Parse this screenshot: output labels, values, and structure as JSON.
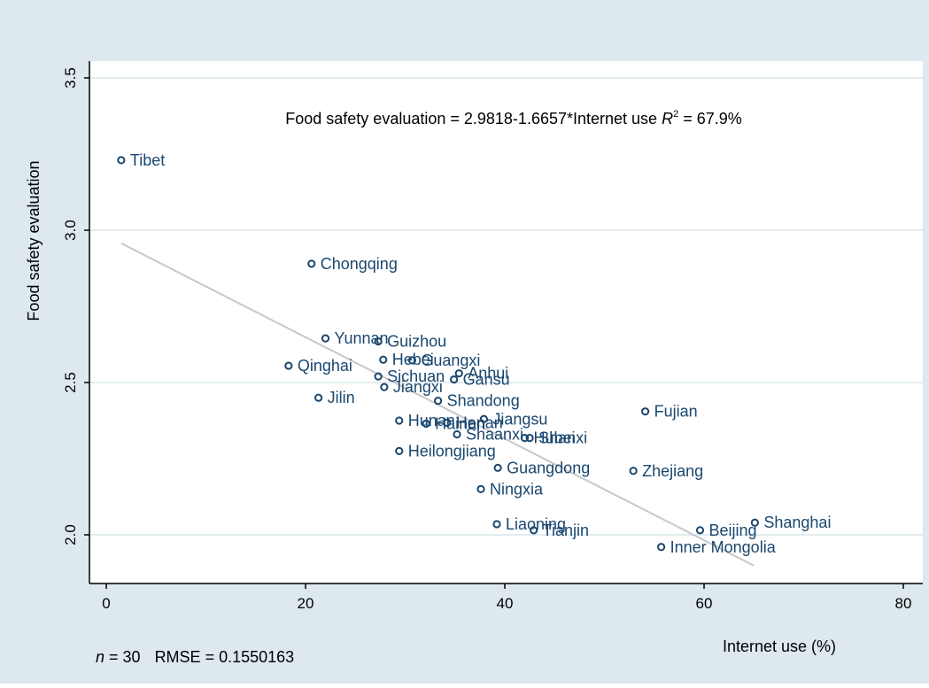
{
  "chart_data": {
    "type": "scatter",
    "ylabel": "Food safety evaluation",
    "xlabel": "Internet use (%)",
    "xlim": [
      0,
      80
    ],
    "ylim": [
      1.85,
      3.6
    ],
    "x_ticks": [
      0,
      20,
      40,
      60,
      80
    ],
    "y_ticks": [
      2.0,
      2.5,
      3.0,
      3.5
    ],
    "x_tick_labels": [
      "0",
      "20",
      "40",
      "60",
      "80"
    ],
    "y_tick_labels": [
      "2.0",
      "2.5",
      "3.0",
      "3.5"
    ],
    "grid": true,
    "fit_line": {
      "x": [
        1.5,
        65
      ],
      "y": [
        2.957,
        1.899
      ]
    },
    "annotation": {
      "prefix": "Food safety evaluation = 2.9818-1.6657*Internet use ",
      "r": "R",
      "sup": "2",
      "suffix": " = 67.9%"
    },
    "footnote": {
      "n_symbol": "n",
      "n_value": " = 30",
      "rmse": "RMSE =  0.1550163"
    },
    "colors": {
      "outer_background": "#dde9ef",
      "plot_background": "#ffffff",
      "grid": "#e3ecf1",
      "marker": "#1a476f",
      "label": "#1a476f",
      "fit_line": "#c8c8c8",
      "axis": "#000000"
    },
    "points": [
      {
        "label": "Tibet",
        "x": 1.5,
        "y": 3.23
      },
      {
        "label": "Chongqing",
        "x": 20.6,
        "y": 2.89
      },
      {
        "label": "Yunnan",
        "x": 22.0,
        "y": 2.645
      },
      {
        "label": "Guizhou",
        "x": 27.3,
        "y": 2.635
      },
      {
        "label": "Qinghai",
        "x": 18.3,
        "y": 2.555
      },
      {
        "label": "Hebei",
        "x": 27.8,
        "y": 2.575
      },
      {
        "label": "Guangxi",
        "x": 30.7,
        "y": 2.573
      },
      {
        "label": "Anhui",
        "x": 35.4,
        "y": 2.53
      },
      {
        "label": "Sichuan",
        "x": 27.3,
        "y": 2.52
      },
      {
        "label": "Gansu",
        "x": 34.9,
        "y": 2.51
      },
      {
        "label": "Jiangxi",
        "x": 27.9,
        "y": 2.485
      },
      {
        "label": "Jilin",
        "x": 21.3,
        "y": 2.45
      },
      {
        "label": "Shandong",
        "x": 33.3,
        "y": 2.44
      },
      {
        "label": "Hunan",
        "x": 29.4,
        "y": 2.375
      },
      {
        "label": "Jiangsu",
        "x": 37.9,
        "y": 2.38
      },
      {
        "label": "Hainan",
        "x": 32.1,
        "y": 2.365
      },
      {
        "label": "Henan",
        "x": 34.2,
        "y": 2.368
      },
      {
        "label": "Shaanxi",
        "x": 35.2,
        "y": 2.33
      },
      {
        "label": "Hubei",
        "x": 42.0,
        "y": 2.318
      },
      {
        "label": "Shanxi",
        "x": 42.5,
        "y": 2.318
      },
      {
        "label": "Heilongjiang",
        "x": 29.4,
        "y": 2.275
      },
      {
        "label": "Guangdong",
        "x": 39.3,
        "y": 2.22
      },
      {
        "label": "Ningxia",
        "x": 37.6,
        "y": 2.15
      },
      {
        "label": "Fujian",
        "x": 54.1,
        "y": 2.405
      },
      {
        "label": "Zhejiang",
        "x": 52.9,
        "y": 2.21
      },
      {
        "label": "Liaoning",
        "x": 39.2,
        "y": 2.035
      },
      {
        "label": "Tianjin",
        "x": 42.9,
        "y": 2.015
      },
      {
        "label": "Shanghai",
        "x": 65.1,
        "y": 2.04
      },
      {
        "label": "Beijing",
        "x": 59.6,
        "y": 2.015
      },
      {
        "label": "Inner Mongolia",
        "x": 55.7,
        "y": 1.96
      }
    ]
  }
}
